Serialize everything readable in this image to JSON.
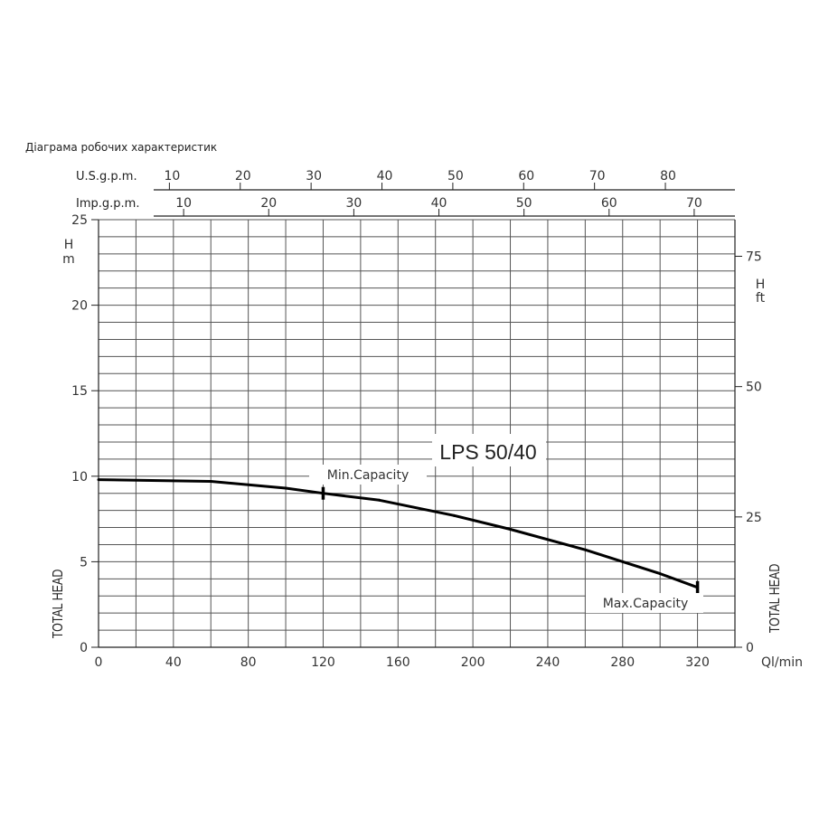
{
  "page": {
    "title": "Діаграма робочих характеристик"
  },
  "chart_data": {
    "type": "line",
    "title": "LPS 50/40",
    "x": [
      0,
      60,
      100,
      120,
      150,
      190,
      220,
      260,
      300,
      320
    ],
    "series": [
      {
        "values": [
          9.8,
          9.7,
          9.3,
          9.0,
          8.6,
          7.7,
          6.9,
          5.7,
          4.3,
          3.5
        ]
      }
    ],
    "xlim": [
      0,
      340
    ],
    "ylim": [
      0,
      25
    ],
    "x_ticks": [
      "0",
      "40",
      "80",
      "120",
      "160",
      "200",
      "240",
      "280",
      "320"
    ],
    "x_tick_values": [
      0,
      40,
      80,
      120,
      160,
      200,
      240,
      280,
      320
    ],
    "y_ticks": [
      "0",
      "5",
      "10",
      "15",
      "20",
      "25"
    ],
    "y_tick_values": [
      0,
      5,
      10,
      15,
      20,
      25
    ],
    "xlabel": "Ql/min",
    "ylabel_unit": "H\nm",
    "ylabel": "TOTAL HEAD",
    "y2_ticks": [
      "0",
      "25",
      "50",
      "75"
    ],
    "y2_tick_values": [
      0,
      25,
      50,
      75
    ],
    "y2_unit": "H\nft",
    "y2_label": "TOTAL HEAD",
    "usgpm_label": "U.S.g.p.m.",
    "usgpm_ticks": [
      "10",
      "20",
      "30",
      "40",
      "50",
      "60",
      "70",
      "80"
    ],
    "usgpm_tick_values": [
      10,
      20,
      30,
      40,
      50,
      60,
      70,
      80
    ],
    "impgpm_label": "Imp.g.p.m.",
    "impgpm_ticks": [
      "10",
      "20",
      "30",
      "40",
      "50",
      "60",
      "70"
    ],
    "impgpm_tick_values": [
      10,
      20,
      30,
      40,
      50,
      60,
      70
    ],
    "annotations": [
      {
        "text": "Min.Capacity",
        "x": 120,
        "y": 9.0
      },
      {
        "text": "Max.Capacity",
        "x": 320,
        "y": 3.5
      }
    ],
    "grid": true
  }
}
